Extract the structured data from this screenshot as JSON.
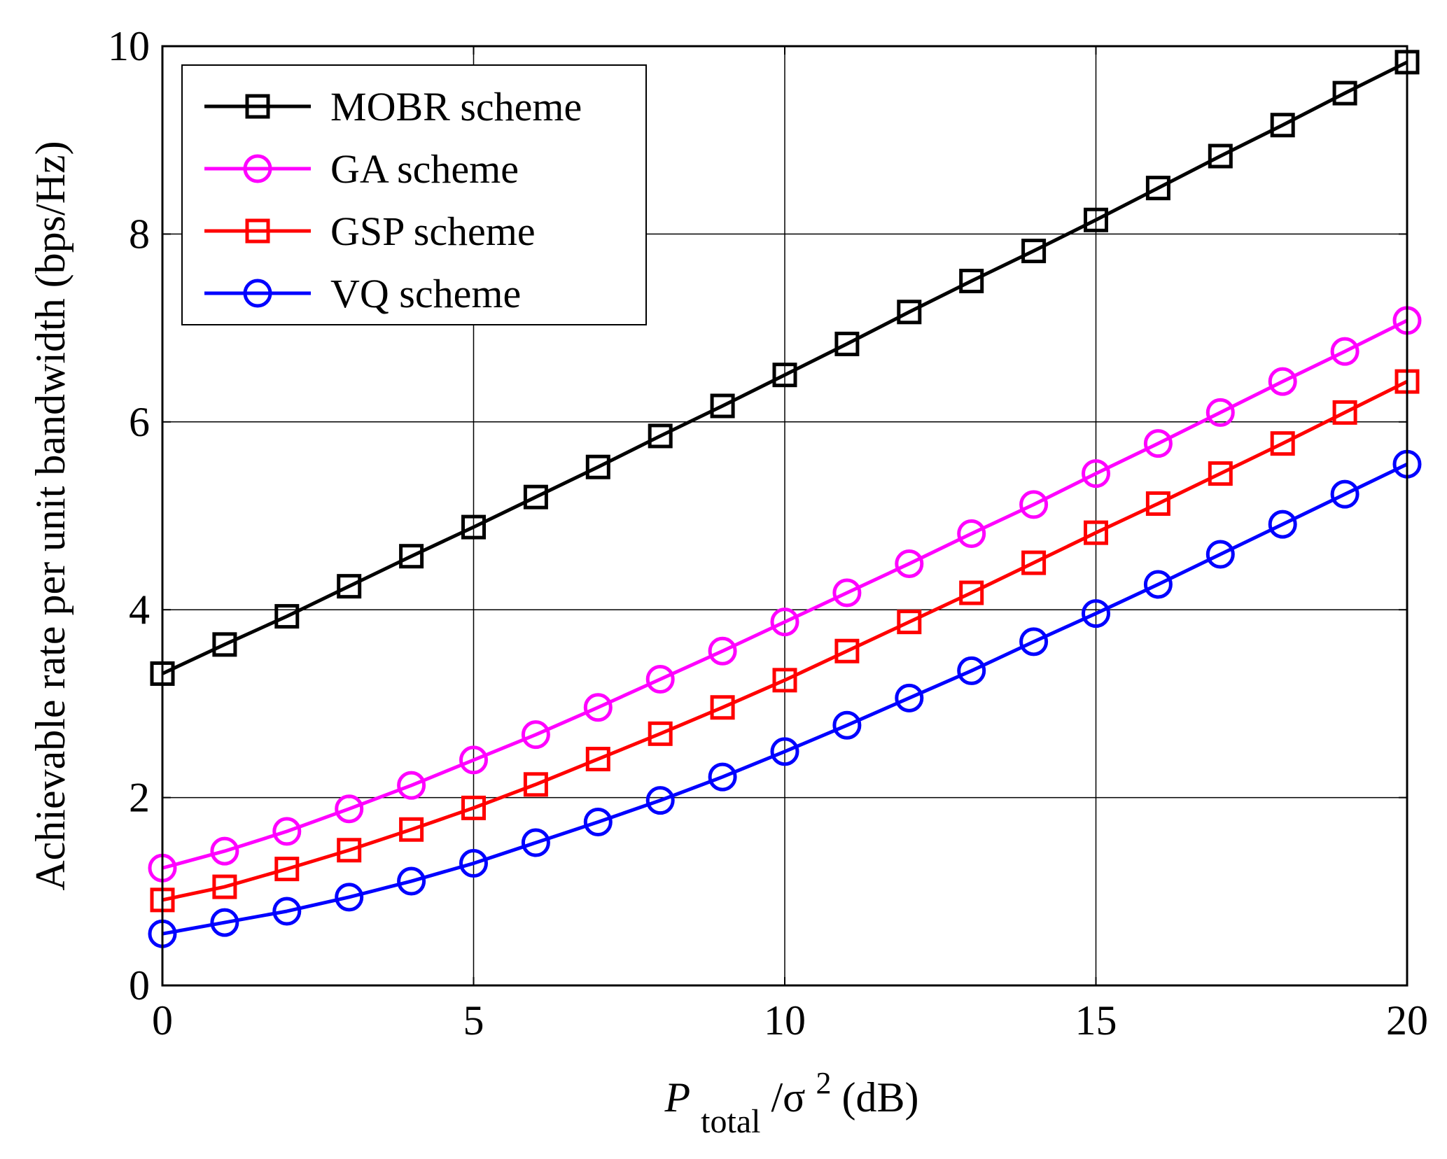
{
  "chart_data": {
    "type": "line",
    "title": "",
    "xlabel": {
      "main": "P",
      "sub": "total",
      "mid": "/σ",
      "sup": "2",
      "tail": " (dB)"
    },
    "ylabel": "Achievable rate per unit bandwidth (bps/Hz)",
    "xlim": [
      0,
      20
    ],
    "ylim": [
      0,
      10
    ],
    "xticks": [
      0,
      5,
      10,
      15,
      20
    ],
    "yticks": [
      0,
      2,
      4,
      6,
      8,
      10
    ],
    "grid": true,
    "legend_position": "top-left",
    "x": [
      0,
      1,
      2,
      3,
      4,
      5,
      6,
      7,
      8,
      9,
      10,
      11,
      12,
      13,
      14,
      15,
      16,
      17,
      18,
      19,
      20
    ],
    "series": [
      {
        "name": "MOBR scheme",
        "color": "#000000",
        "marker": "square",
        "values": [
          3.32,
          3.63,
          3.93,
          4.25,
          4.57,
          4.88,
          5.2,
          5.52,
          5.85,
          6.17,
          6.5,
          6.83,
          7.17,
          7.5,
          7.82,
          8.15,
          8.49,
          8.83,
          9.16,
          9.5,
          9.83
        ]
      },
      {
        "name": "GA scheme",
        "color": "#ff00ff",
        "marker": "circle",
        "values": [
          1.25,
          1.43,
          1.64,
          1.88,
          2.13,
          2.4,
          2.67,
          2.96,
          3.26,
          3.56,
          3.87,
          4.18,
          4.49,
          4.81,
          5.12,
          5.45,
          5.77,
          6.1,
          6.43,
          6.75,
          7.08
        ]
      },
      {
        "name": "GSP scheme",
        "color": "#ff0000",
        "marker": "square",
        "values": [
          0.91,
          1.05,
          1.24,
          1.44,
          1.66,
          1.89,
          2.14,
          2.41,
          2.68,
          2.96,
          3.25,
          3.56,
          3.87,
          4.18,
          4.5,
          4.82,
          5.13,
          5.45,
          5.77,
          6.1,
          6.43
        ]
      },
      {
        "name": "VQ scheme",
        "color": "#0000ff",
        "marker": "circle",
        "values": [
          0.55,
          0.67,
          0.79,
          0.94,
          1.11,
          1.3,
          1.52,
          1.74,
          1.97,
          2.22,
          2.49,
          2.77,
          3.06,
          3.35,
          3.66,
          3.96,
          4.27,
          4.59,
          4.91,
          5.23,
          5.55
        ]
      }
    ]
  }
}
